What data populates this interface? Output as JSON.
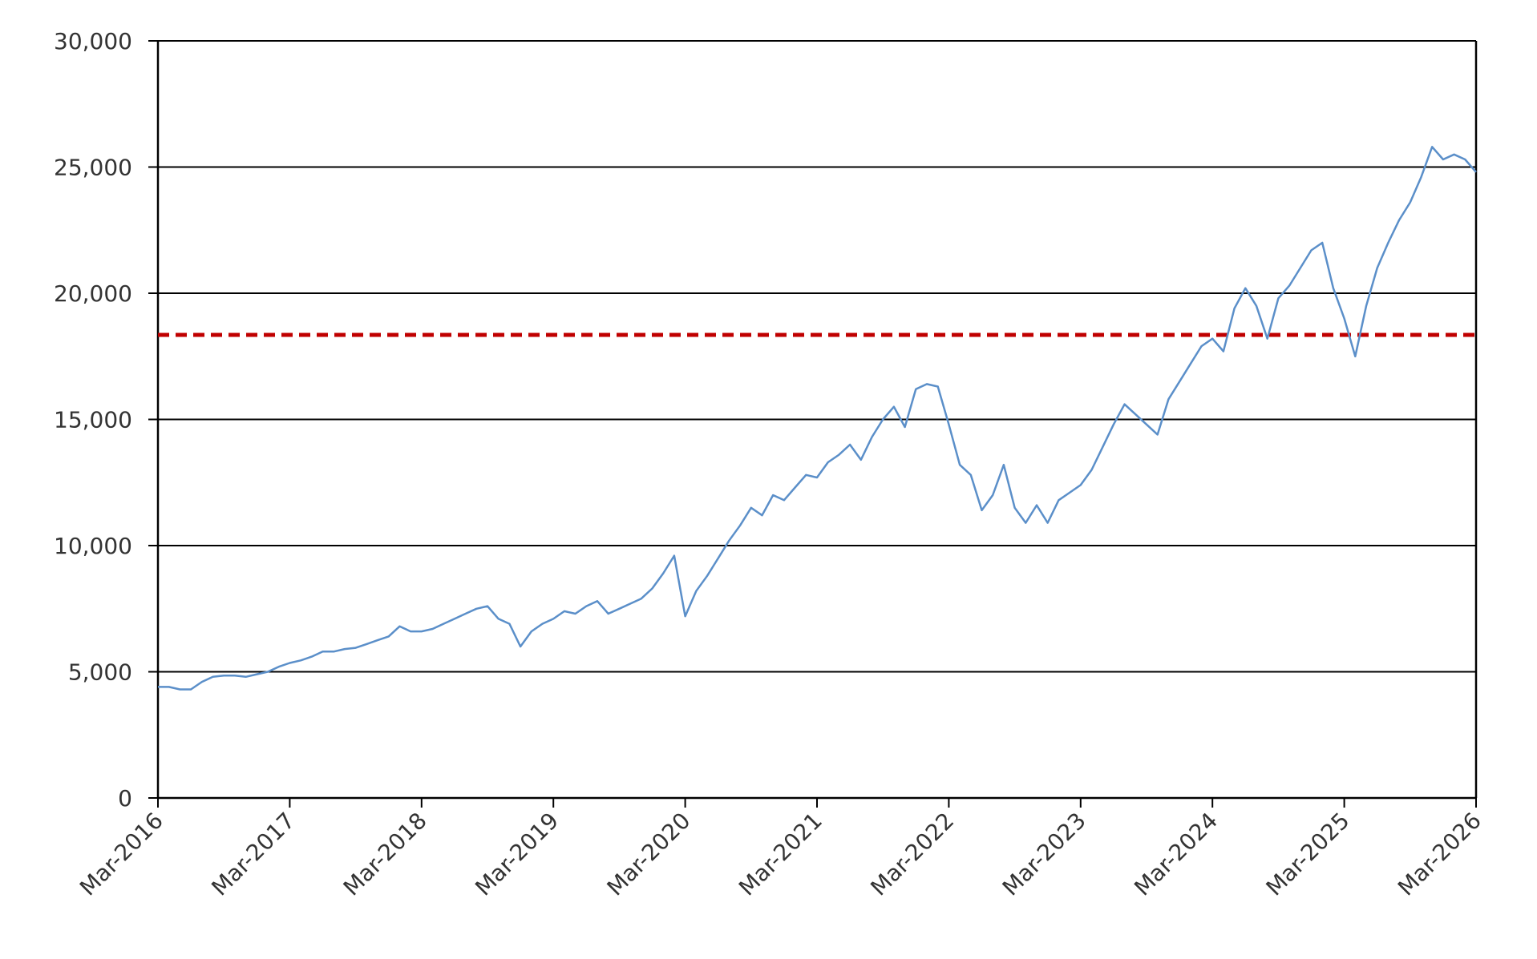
{
  "chart_data": {
    "type": "line",
    "x": [
      "2016-03",
      "2016-04",
      "2016-05",
      "2016-06",
      "2016-07",
      "2016-08",
      "2016-09",
      "2016-10",
      "2016-11",
      "2016-12",
      "2017-01",
      "2017-02",
      "2017-03",
      "2017-04",
      "2017-05",
      "2017-06",
      "2017-07",
      "2017-08",
      "2017-09",
      "2017-10",
      "2017-11",
      "2017-12",
      "2018-01",
      "2018-02",
      "2018-03",
      "2018-04",
      "2018-05",
      "2018-06",
      "2018-07",
      "2018-08",
      "2018-09",
      "2018-10",
      "2018-11",
      "2018-12",
      "2019-01",
      "2019-02",
      "2019-03",
      "2019-04",
      "2019-05",
      "2019-06",
      "2019-07",
      "2019-08",
      "2019-09",
      "2019-10",
      "2019-11",
      "2019-12",
      "2020-01",
      "2020-02",
      "2020-03",
      "2020-04",
      "2020-05",
      "2020-06",
      "2020-07",
      "2020-08",
      "2020-09",
      "2020-10",
      "2020-11",
      "2020-12",
      "2021-01",
      "2021-02",
      "2021-03",
      "2021-04",
      "2021-05",
      "2021-06",
      "2021-07",
      "2021-08",
      "2021-09",
      "2021-10",
      "2021-11",
      "2021-12",
      "2022-01",
      "2022-02",
      "2022-03",
      "2022-04",
      "2022-05",
      "2022-06",
      "2022-07",
      "2022-08",
      "2022-09",
      "2022-10",
      "2022-11",
      "2022-12",
      "2023-01",
      "2023-02",
      "2023-03",
      "2023-04",
      "2023-05",
      "2023-06",
      "2023-07",
      "2023-08",
      "2023-09",
      "2023-10",
      "2023-11",
      "2023-12",
      "2024-01",
      "2024-02",
      "2024-03",
      "2024-04",
      "2024-05",
      "2024-06",
      "2024-07",
      "2024-08",
      "2024-09",
      "2024-10",
      "2024-11",
      "2024-12",
      "2025-01",
      "2025-02",
      "2025-03",
      "2025-04",
      "2025-05",
      "2025-06",
      "2025-07",
      "2025-08",
      "2025-09",
      "2025-10",
      "2025-11",
      "2025-12",
      "2026-01",
      "2026-02",
      "2026-03"
    ],
    "values": [
      4400,
      4400,
      4300,
      4300,
      4600,
      4800,
      4850,
      4850,
      4800,
      4900,
      5000,
      5200,
      5350,
      5450,
      5600,
      5800,
      5800,
      5900,
      5950,
      6100,
      6250,
      6400,
      6800,
      6600,
      6600,
      6700,
      6900,
      7100,
      7300,
      7500,
      7600,
      7100,
      6900,
      6000,
      6600,
      6900,
      7100,
      7400,
      7300,
      7600,
      7800,
      7300,
      7500,
      7700,
      7900,
      8300,
      8900,
      9600,
      7200,
      8200,
      8800,
      9500,
      10200,
      10800,
      11500,
      11200,
      12000,
      11800,
      12300,
      12800,
      12700,
      13300,
      13600,
      14000,
      13400,
      14300,
      15000,
      15500,
      14700,
      16200,
      16400,
      16300,
      14800,
      13200,
      12800,
      11400,
      12000,
      13200,
      11500,
      10900,
      11600,
      10900,
      11800,
      12100,
      12400,
      13000,
      13900,
      14800,
      15600,
      15200,
      14800,
      14400,
      15800,
      16500,
      17200,
      17900,
      18200,
      17700,
      19400,
      20200,
      19500,
      18200,
      19800,
      20300,
      21000,
      21700,
      22000,
      20200,
      19000,
      17500,
      19500,
      21000,
      22000,
      22900,
      23600,
      24600,
      25800,
      25300,
      25500,
      25300,
      24800
    ],
    "color": "#5b8fc9",
    "reference_line": {
      "value": 18350,
      "color": "#c00000",
      "style": "dashed"
    },
    "xlim": [
      "2016-03",
      "2026-03"
    ],
    "xticks": [
      {
        "value": "2016-03",
        "label": "Mar-2016"
      },
      {
        "value": "2017-03",
        "label": "Mar-2017"
      },
      {
        "value": "2018-03",
        "label": "Mar-2018"
      },
      {
        "value": "2019-03",
        "label": "Mar-2019"
      },
      {
        "value": "2020-03",
        "label": "Mar-2020"
      },
      {
        "value": "2021-03",
        "label": "Mar-2021"
      },
      {
        "value": "2022-03",
        "label": "Mar-2022"
      },
      {
        "value": "2023-03",
        "label": "Mar-2023"
      },
      {
        "value": "2024-03",
        "label": "Mar-2024"
      },
      {
        "value": "2025-03",
        "label": "Mar-2025"
      },
      {
        "value": "2026-03",
        "label": "Mar-2026"
      }
    ],
    "ylim": [
      0,
      30000
    ],
    "yticks": [
      0,
      {
        "value": 5000,
        "label": "5,000"
      },
      {
        "value": 10000,
        "label": "10,000"
      },
      {
        "value": 15000,
        "label": "15,000"
      },
      {
        "value": 20000,
        "label": "20,000"
      },
      {
        "value": 25000,
        "label": "25,000"
      },
      {
        "value": 30000,
        "label": "30,000"
      }
    ],
    "grid": true
  }
}
